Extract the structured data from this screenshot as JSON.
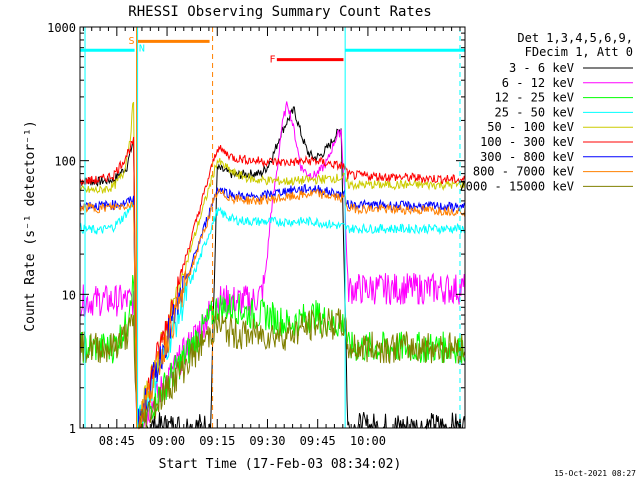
{
  "chart_data": {
    "type": "line",
    "title": "RHESSI Observing Summary Count Rates",
    "xlabel": "Start Time (17-Feb-03 08:34:02)",
    "ylabel": "Count Rate (s⁻¹ detector⁻¹)",
    "yscale": "log",
    "ylim": [
      1,
      1000
    ],
    "xlim_minutes": [
      34.0,
      149.0
    ],
    "x_ticks": [
      {
        "t": 45,
        "label": "08:45"
      },
      {
        "t": 60,
        "label": "09:00"
      },
      {
        "t": 75,
        "label": "09:15"
      },
      {
        "t": 90,
        "label": "09:30"
      },
      {
        "t": 105,
        "label": "09:45"
      },
      {
        "t": 120,
        "label": "10:00"
      }
    ],
    "y_ticks": [
      {
        "v": 1,
        "label": "1"
      },
      {
        "v": 10,
        "label": "10"
      },
      {
        "v": 100,
        "label": "100"
      },
      {
        "v": 1000,
        "label": "1000"
      }
    ],
    "legend_header": [
      "Det 1,3,4,5,6,9,",
      "FDecim 1, Att 0"
    ],
    "legend_position": "right",
    "footer_date": "15-Oct-2021 08:27",
    "time_unit": "minutes after 08:00 UT",
    "series": [
      {
        "name": "3 - 6 keV",
        "color": "#000000",
        "points": [
          [
            34,
            70
          ],
          [
            40,
            70
          ],
          [
            44,
            72
          ],
          [
            48,
            90
          ],
          [
            50,
            145
          ],
          [
            51,
            1
          ],
          [
            73,
            1
          ],
          [
            75,
            88
          ],
          [
            80,
            78
          ],
          [
            86,
            80
          ],
          [
            88,
            80
          ],
          [
            90,
            90
          ],
          [
            92,
            115
          ],
          [
            94,
            160
          ],
          [
            96,
            200
          ],
          [
            98,
            240
          ],
          [
            100,
            160
          ],
          [
            102,
            115
          ],
          [
            104,
            105
          ],
          [
            106,
            110
          ],
          [
            108,
            125
          ],
          [
            110,
            150
          ],
          [
            112,
            175
          ],
          [
            114,
            1
          ],
          [
            148,
            1
          ]
        ]
      },
      {
        "name": "6 - 12 keV",
        "color": "#ff00ff",
        "points": [
          [
            34,
            9
          ],
          [
            50,
            9
          ],
          [
            51,
            1
          ],
          [
            75,
            9
          ],
          [
            84,
            9
          ],
          [
            86,
            9
          ],
          [
            88,
            10
          ],
          [
            89,
            12
          ],
          [
            90,
            20
          ],
          [
            91,
            40
          ],
          [
            92,
            60
          ],
          [
            93,
            90
          ],
          [
            94,
            160
          ],
          [
            95,
            220
          ],
          [
            96,
            270
          ],
          [
            97,
            215
          ],
          [
            98,
            165
          ],
          [
            100,
            90
          ],
          [
            102,
            80
          ],
          [
            104,
            78
          ],
          [
            106,
            85
          ],
          [
            108,
            100
          ],
          [
            110,
            140
          ],
          [
            112,
            170
          ],
          [
            113,
            60
          ],
          [
            114,
            11
          ],
          [
            148,
            11
          ]
        ]
      },
      {
        "name": "12 - 25 keV",
        "color": "#00ff00",
        "points": [
          [
            34,
            4
          ],
          [
            44,
            4
          ],
          [
            48,
            6
          ],
          [
            49,
            10
          ],
          [
            50,
            12
          ],
          [
            51,
            1
          ],
          [
            75,
            8
          ],
          [
            80,
            8
          ],
          [
            86,
            7
          ],
          [
            90,
            7
          ],
          [
            96,
            6
          ],
          [
            104,
            7
          ],
          [
            110,
            6
          ],
          [
            113,
            6
          ],
          [
            114,
            4
          ],
          [
            148,
            4
          ]
        ]
      },
      {
        "name": "25 - 50 keV",
        "color": "#00ffff",
        "points": [
          [
            34,
            31
          ],
          [
            40,
            30
          ],
          [
            44,
            32
          ],
          [
            47,
            38
          ],
          [
            49,
            44
          ],
          [
            50,
            50
          ],
          [
            51,
            1
          ],
          [
            75,
            42
          ],
          [
            80,
            36
          ],
          [
            86,
            35
          ],
          [
            96,
            35
          ],
          [
            104,
            35
          ],
          [
            113,
            32
          ],
          [
            114,
            31
          ],
          [
            148,
            31
          ]
        ]
      },
      {
        "name": "50 - 100 keV",
        "color": "#cccc00",
        "points": [
          [
            34,
            60
          ],
          [
            40,
            60
          ],
          [
            44,
            64
          ],
          [
            47,
            80
          ],
          [
            49,
            150
          ],
          [
            50,
            290
          ],
          [
            51,
            1
          ],
          [
            75,
            100
          ],
          [
            80,
            80
          ],
          [
            86,
            72
          ],
          [
            96,
            70
          ],
          [
            104,
            72
          ],
          [
            113,
            75
          ],
          [
            114,
            66
          ],
          [
            148,
            66
          ]
        ]
      },
      {
        "name": "100 - 300 keV",
        "color": "#ff0000",
        "points": [
          [
            34,
            70
          ],
          [
            40,
            72
          ],
          [
            44,
            78
          ],
          [
            47,
            100
          ],
          [
            49,
            125
          ],
          [
            50,
            140
          ],
          [
            51,
            1
          ],
          [
            75,
            125
          ],
          [
            80,
            105
          ],
          [
            86,
            100
          ],
          [
            96,
            97
          ],
          [
            104,
            100
          ],
          [
            113,
            90
          ],
          [
            114,
            78
          ],
          [
            148,
            72
          ]
        ]
      },
      {
        "name": "300 - 800 keV",
        "color": "#0000ff",
        "points": [
          [
            34,
            47
          ],
          [
            40,
            46
          ],
          [
            44,
            47
          ],
          [
            47,
            48
          ],
          [
            49,
            50
          ],
          [
            50,
            52
          ],
          [
            51,
            1
          ],
          [
            75,
            62
          ],
          [
            80,
            55
          ],
          [
            86,
            53
          ],
          [
            96,
            60
          ],
          [
            104,
            62
          ],
          [
            113,
            55
          ],
          [
            114,
            47
          ],
          [
            148,
            45
          ]
        ]
      },
      {
        "name": "800 - 7000 keV",
        "color": "#ff8000",
        "points": [
          [
            34,
            45
          ],
          [
            40,
            44
          ],
          [
            44,
            45
          ],
          [
            47,
            46
          ],
          [
            49,
            47
          ],
          [
            50,
            48
          ],
          [
            51,
            1
          ],
          [
            75,
            58
          ],
          [
            80,
            52
          ],
          [
            86,
            50
          ],
          [
            96,
            53
          ],
          [
            104,
            57
          ],
          [
            113,
            52
          ],
          [
            114,
            44
          ],
          [
            148,
            42
          ]
        ]
      },
      {
        "name": "7000 - 15000 keV",
        "color": "#808000",
        "points": [
          [
            34,
            4
          ],
          [
            44,
            4
          ],
          [
            48,
            5
          ],
          [
            50,
            6
          ],
          [
            51,
            1
          ],
          [
            75,
            6
          ],
          [
            80,
            5
          ],
          [
            86,
            5
          ],
          [
            90,
            5
          ],
          [
            96,
            5
          ],
          [
            104,
            6
          ],
          [
            110,
            6
          ],
          [
            113,
            6
          ],
          [
            114,
            4
          ],
          [
            148,
            4
          ]
        ]
      }
    ],
    "annotations": [
      {
        "kind": "vline",
        "t": 35.5,
        "color": "#00ffff",
        "style": "solid"
      },
      {
        "kind": "vline",
        "t": 147.5,
        "color": "#00ffff",
        "style": "dashed"
      },
      {
        "kind": "vline",
        "t": 113.2,
        "color": "#00ffff",
        "style": "solid"
      },
      {
        "kind": "vline",
        "t": 51.2,
        "color": "#00ffff",
        "style": "solid"
      },
      {
        "kind": "vline",
        "t": 50.9,
        "color": "#ff8000",
        "style": "solid"
      },
      {
        "kind": "vline",
        "t": 73.6,
        "color": "#ff8000",
        "style": "dashed"
      },
      {
        "kind": "hline",
        "t_start": 34.0,
        "t_end": 50.3,
        "value": 670,
        "color": "#00ffff",
        "width": 3
      },
      {
        "kind": "hline",
        "t_start": 51.3,
        "t_end": 72.7,
        "value": 780,
        "color": "#ff8000",
        "width": 3
      },
      {
        "kind": "hline",
        "t_start": 113.2,
        "t_end": 149.0,
        "value": 670,
        "color": "#00ffff",
        "width": 3
      },
      {
        "kind": "hline",
        "t_start": 92.8,
        "t_end": 112.7,
        "value": 570,
        "color": "#ff0000",
        "width": 3
      }
    ],
    "markers": [
      {
        "text": "S",
        "t": 49.4,
        "value": 800,
        "color": "#ff8000"
      },
      {
        "text": "N",
        "t": 52.5,
        "value": 700,
        "color": "#00ffff"
      },
      {
        "text": "F",
        "t": 91.5,
        "value": 580,
        "color": "#ff0000"
      }
    ]
  }
}
